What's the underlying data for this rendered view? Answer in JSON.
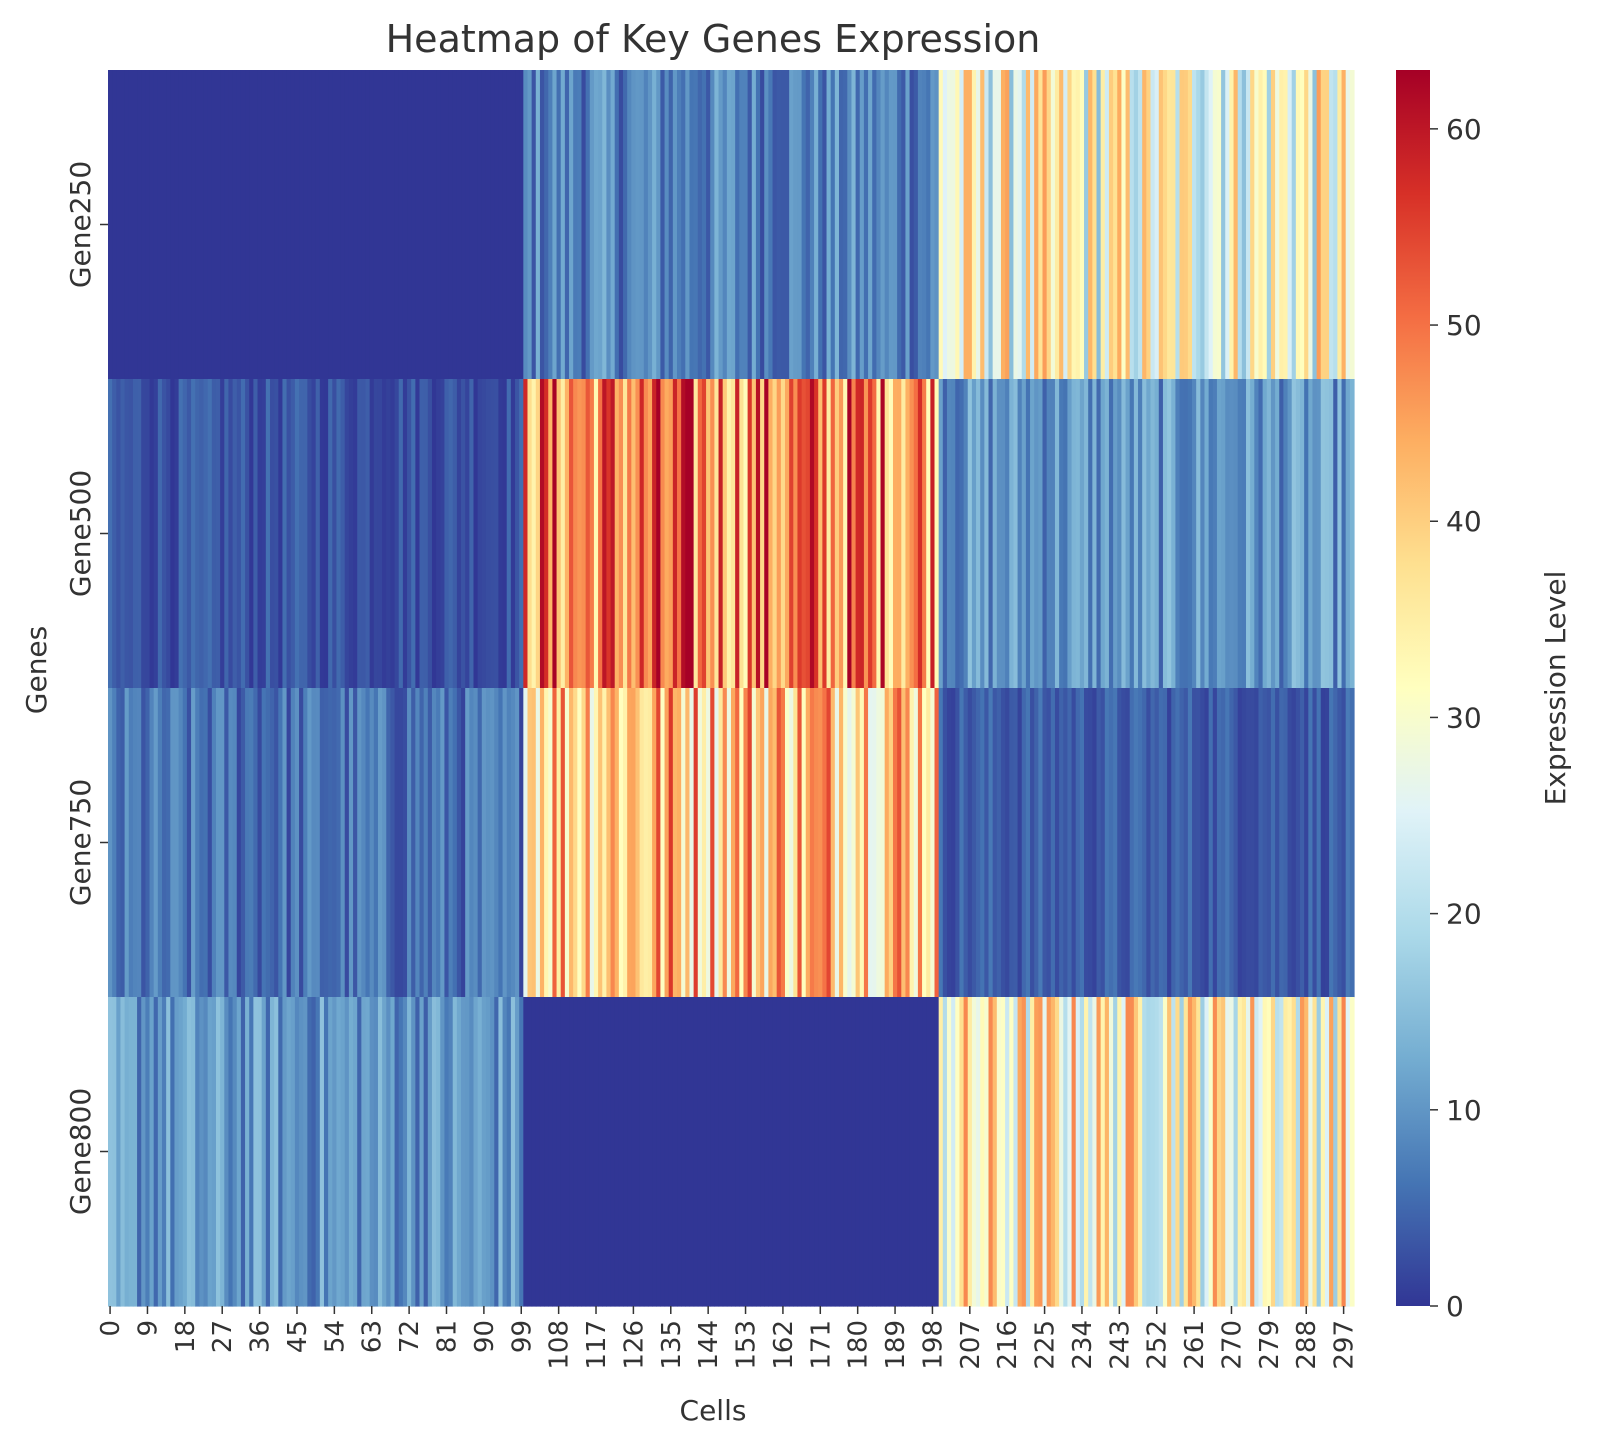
{
  "chart_data": {
    "type": "heatmap",
    "title": "Heatmap of Key Genes Expression",
    "xlabel": "Cells",
    "ylabel": "Genes",
    "colorbar_label": "Expression Level",
    "genes": [
      "Gene250",
      "Gene500",
      "Gene750",
      "Gene800"
    ],
    "n_cells": 300,
    "x_tick_labels": [
      "0",
      "9",
      "18",
      "27",
      "36",
      "45",
      "54",
      "63",
      "72",
      "81",
      "90",
      "99",
      "108",
      "117",
      "126",
      "135",
      "144",
      "153",
      "162",
      "171",
      "180",
      "189",
      "198",
      "207",
      "216",
      "225",
      "234",
      "243",
      "252",
      "261",
      "270",
      "279",
      "288",
      "297"
    ],
    "colorbar_ticks": [
      "0",
      "10",
      "20",
      "30",
      "40",
      "50",
      "60"
    ],
    "value_range": [
      0,
      63
    ],
    "colormap": "RdYlBu_r",
    "colormap_stops": [
      "#313695",
      "#4575b4",
      "#74add1",
      "#abd9e9",
      "#e0f3f8",
      "#ffffbf",
      "#fee090",
      "#fdae61",
      "#f46d43",
      "#d73027",
      "#a50026"
    ],
    "blocks": [
      {
        "gene": "Gene250",
        "cells": [
          0,
          99
        ],
        "mean": 0,
        "spread": 0
      },
      {
        "gene": "Gene250",
        "cells": [
          100,
          199
        ],
        "mean": 8,
        "spread": 6
      },
      {
        "gene": "Gene250",
        "cells": [
          200,
          299
        ],
        "mean": 30,
        "spread": 16
      },
      {
        "gene": "Gene500",
        "cells": [
          0,
          99
        ],
        "mean": 3,
        "spread": 3
      },
      {
        "gene": "Gene500",
        "cells": [
          100,
          199
        ],
        "mean": 48,
        "spread": 16
      },
      {
        "gene": "Gene500",
        "cells": [
          200,
          299
        ],
        "mean": 10,
        "spread": 6
      },
      {
        "gene": "Gene750",
        "cells": [
          0,
          99
        ],
        "mean": 6,
        "spread": 5
      },
      {
        "gene": "Gene750",
        "cells": [
          100,
          199
        ],
        "mean": 42,
        "spread": 16
      },
      {
        "gene": "Gene750",
        "cells": [
          200,
          299
        ],
        "mean": 4,
        "spread": 3
      },
      {
        "gene": "Gene800",
        "cells": [
          0,
          99
        ],
        "mean": 10,
        "spread": 6
      },
      {
        "gene": "Gene800",
        "cells": [
          100,
          199
        ],
        "mean": 0,
        "spread": 0
      },
      {
        "gene": "Gene800",
        "cells": [
          200,
          299
        ],
        "mean": 33,
        "spread": 16
      }
    ]
  }
}
